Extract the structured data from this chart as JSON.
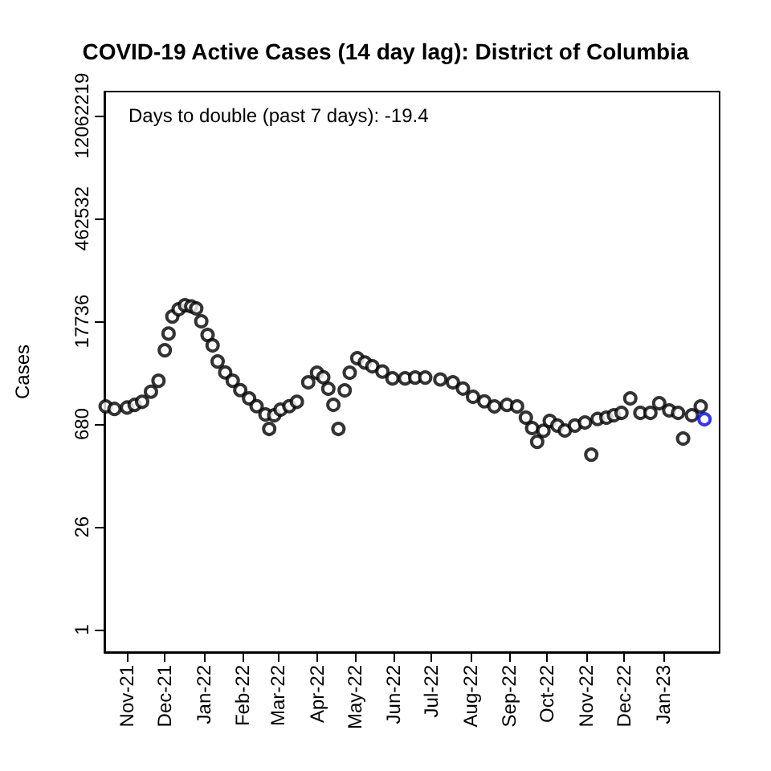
{
  "chart_data": {
    "type": "scatter",
    "title": "COVID-19 Active Cases (14 day lag): District of Columbia",
    "ylabel": "Cases",
    "annotations": [
      "Days to double (past 7 days): -19.4"
    ],
    "log": "y",
    "grid": false,
    "marker": "circle",
    "xlim": [
      "2021-10-14",
      "2023-02-15"
    ],
    "xticks": [
      {
        "value": "2021-11-01",
        "label": "Nov-21"
      },
      {
        "value": "2021-12-01",
        "label": "Dec-21"
      },
      {
        "value": "2022-01-01",
        "label": "Jan-22"
      },
      {
        "value": "2022-02-01",
        "label": "Feb-22"
      },
      {
        "value": "2022-03-01",
        "label": "Mar-22"
      },
      {
        "value": "2022-04-01",
        "label": "Apr-22"
      },
      {
        "value": "2022-05-01",
        "label": "May-22"
      },
      {
        "value": "2022-06-01",
        "label": "Jun-22"
      },
      {
        "value": "2022-07-01",
        "label": "Jul-22"
      },
      {
        "value": "2022-08-01",
        "label": "Aug-22"
      },
      {
        "value": "2022-09-01",
        "label": "Sep-22"
      },
      {
        "value": "2022-10-01",
        "label": "Oct-22"
      },
      {
        "value": "2022-11-01",
        "label": "Nov-22"
      },
      {
        "value": "2022-12-01",
        "label": "Dec-22"
      },
      {
        "value": "2023-01-01",
        "label": "Jan-23"
      }
    ],
    "ylim": [
      0.49,
      26000000
    ],
    "yticks": [
      1,
      26,
      680,
      17736,
      462532,
      12062219
    ],
    "series": [
      {
        "color": "#000000",
        "x": [
          "2021-10-15",
          "2021-10-22",
          "2021-11-01",
          "2021-11-07",
          "2021-11-13",
          "2021-11-20",
          "2021-11-26",
          "2021-12-01",
          "2021-12-04",
          "2021-12-07",
          "2021-12-12",
          "2021-12-17",
          "2021-12-22",
          "2021-12-26",
          "2021-12-30",
          "2022-01-04",
          "2022-01-08",
          "2022-01-12",
          "2022-01-18",
          "2022-01-24",
          "2022-01-30",
          "2022-02-06",
          "2022-02-12",
          "2022-02-19",
          "2022-02-22",
          "2022-02-26",
          "2022-03-03",
          "2022-03-10",
          "2022-03-16",
          "2022-03-25",
          "2022-04-01",
          "2022-04-06",
          "2022-04-10",
          "2022-04-14",
          "2022-04-18",
          "2022-04-23",
          "2022-04-27",
          "2022-05-03",
          "2022-05-09",
          "2022-05-15",
          "2022-05-23",
          "2022-05-31",
          "2022-06-10",
          "2022-06-18",
          "2022-06-26",
          "2022-07-08",
          "2022-07-18",
          "2022-07-26",
          "2022-08-03",
          "2022-08-12",
          "2022-08-20",
          "2022-08-30",
          "2022-09-07",
          "2022-09-14",
          "2022-09-19",
          "2022-09-23",
          "2022-09-28",
          "2022-10-03",
          "2022-10-09",
          "2022-10-15",
          "2022-10-23",
          "2022-10-31",
          "2022-11-05",
          "2022-11-10",
          "2022-11-17",
          "2022-11-23",
          "2022-11-29",
          "2022-12-06",
          "2022-12-14",
          "2022-12-22",
          "2022-12-29",
          "2023-01-06",
          "2023-01-13",
          "2023-01-17",
          "2023-01-24",
          "2023-01-31"
        ],
        "values": [
          1192,
          1100,
          1150,
          1250,
          1380,
          1900,
          2690,
          7080,
          12000,
          20650,
          26000,
          29500,
          28500,
          26700,
          17750,
          11500,
          8260,
          4960,
          3500,
          2690,
          2000,
          1538,
          1200,
          923,
          584,
          900,
          1076,
          1200,
          1380,
          2560,
          3475,
          3000,
          2090,
          1254,
          584,
          1983,
          3475,
          5500,
          4800,
          4260,
          3600,
          2900,
          2900,
          2980,
          2980,
          2800,
          2560,
          2100,
          1618,
          1400,
          1192,
          1250,
          1192,
          834,
          600,
          388,
          550,
          753,
          650,
          555,
          650,
          716,
          258,
          800,
          834,
          900,
          972,
          1538,
          972,
          972,
          1320,
          1050,
          972,
          430,
          900,
          1192
        ]
      },
      {
        "color": "#0000ff",
        "x": [
          "2023-02-03"
        ],
        "values": [
          793
        ]
      }
    ]
  }
}
